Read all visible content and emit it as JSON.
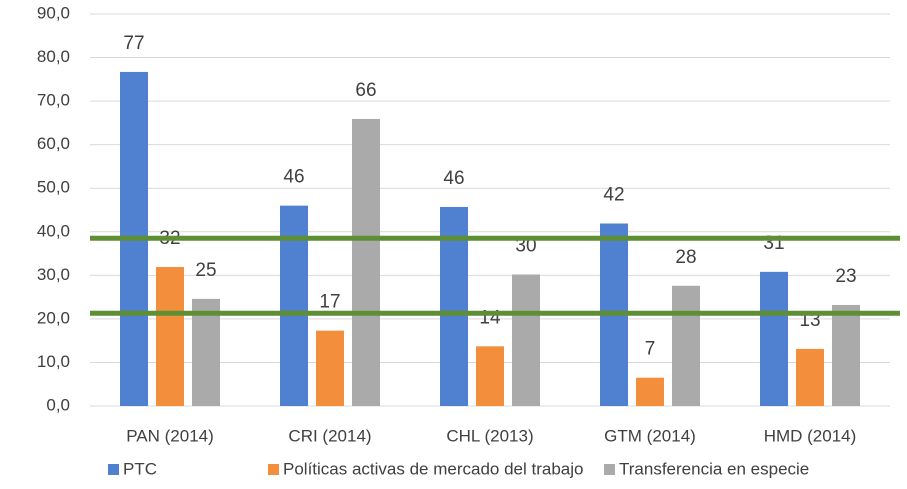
{
  "chart_data": {
    "type": "bar",
    "categories": [
      "PAN (2014)",
      "CRI (2014)",
      "CHL (2013)",
      "GTM (2014)",
      "HMD (2014)"
    ],
    "series": [
      {
        "name": "PTC",
        "color": "#4f81d0",
        "values": [
          76.7,
          46.0,
          45.7,
          41.9,
          30.8
        ],
        "value_labels": [
          "77",
          "46",
          "46",
          "42",
          "31"
        ]
      },
      {
        "name": "Políticas activas de mercado del trabajo",
        "color": "#f28e3c",
        "values": [
          31.9,
          17.3,
          13.7,
          6.5,
          13.1
        ],
        "value_labels": [
          "32",
          "17",
          "14",
          "7",
          "13"
        ]
      },
      {
        "name": "Transferencia en especie",
        "color": "#aaaaaa",
        "values": [
          24.6,
          65.9,
          30.2,
          27.6,
          23.2
        ],
        "value_labels": [
          "25",
          "66",
          "30",
          "28",
          "23"
        ]
      }
    ],
    "ylim": [
      0,
      90
    ],
    "yticks": [
      {
        "value": 0,
        "label": "0,0"
      },
      {
        "value": 10,
        "label": "10,0"
      },
      {
        "value": 20,
        "label": "20,0"
      },
      {
        "value": 30,
        "label": "30,0"
      },
      {
        "value": 40,
        "label": "40,0"
      },
      {
        "value": 50,
        "label": "50,0"
      },
      {
        "value": 60,
        "label": "60,0"
      },
      {
        "value": 70,
        "label": "70,0"
      },
      {
        "value": 80,
        "label": "80,0"
      },
      {
        "value": 90,
        "label": "90,0"
      }
    ],
    "grid": true,
    "legend": "bottom",
    "reference_lines": [
      {
        "value": 38.5,
        "color": "#5f8f34"
      },
      {
        "value": 21.3,
        "color": "#5f8f34"
      }
    ]
  }
}
